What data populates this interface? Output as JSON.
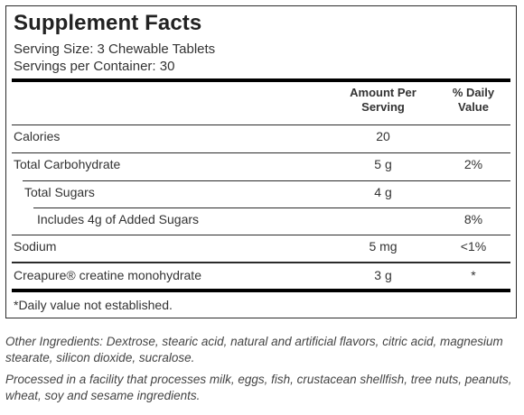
{
  "panel": {
    "title": "Supplement Facts",
    "serving_size": "Serving Size: 3 Chewable Tablets",
    "servings_per_container": "Servings per Container: 30"
  },
  "table": {
    "headers": {
      "amount_line1": "Amount Per",
      "amount_line2": "Serving",
      "dv_line1": "% Daily",
      "dv_line2": "Value"
    },
    "rows": [
      {
        "name": "Calories",
        "amount": "20",
        "dv": ""
      },
      {
        "name": "Total Carbohydrate",
        "amount": "5 g",
        "dv": "2%"
      },
      {
        "name": "Total Sugars",
        "amount": "4 g",
        "dv": ""
      },
      {
        "name": "Includes 4g of Added Sugars",
        "amount": "",
        "dv": "8%"
      },
      {
        "name": "Sodium",
        "amount": "5 mg",
        "dv": "<1%"
      },
      {
        "name": "Creapure® creatine monohydrate",
        "amount": "3 g",
        "dv": "*"
      }
    ],
    "footnote": "*Daily value not established."
  },
  "other_ingredients": "Other Ingredients: Dextrose, stearic acid, natural and artificial flavors, citric acid, magnesium stearate, silicon dioxide, sucralose.",
  "allergen_statement": "Processed in a facility that processes milk, eggs, fish, crustacean shellfish, tree nuts, peanuts, wheat, soy and sesame ingredients."
}
